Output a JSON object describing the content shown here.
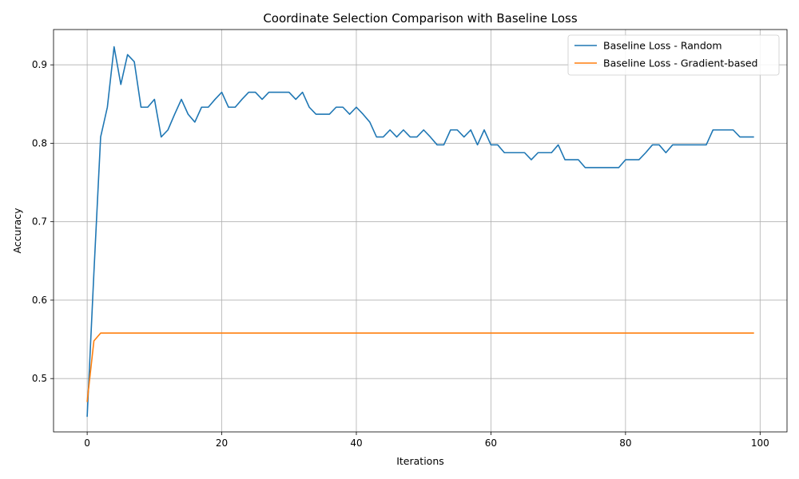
{
  "chart_data": {
    "type": "line",
    "title": "Coordinate Selection Comparison with Baseline Loss",
    "xlabel": "Iterations",
    "ylabel": "Accuracy",
    "xlim": [
      -5,
      104
    ],
    "ylim": [
      0.432,
      0.945
    ],
    "xticks": [
      0,
      20,
      40,
      60,
      80,
      100
    ],
    "yticks": [
      0.5,
      0.6,
      0.7,
      0.8,
      0.9
    ],
    "grid": true,
    "legend_position": "top-right",
    "series": [
      {
        "name": "Baseline Loss - Random",
        "color": "#1f77b4",
        "x": [
          0,
          1,
          2,
          3,
          4,
          5,
          6,
          7,
          8,
          9,
          10,
          11,
          12,
          13,
          14,
          15,
          16,
          17,
          18,
          19,
          20,
          21,
          22,
          23,
          24,
          25,
          26,
          27,
          28,
          29,
          30,
          31,
          32,
          33,
          34,
          35,
          36,
          37,
          38,
          39,
          40,
          41,
          42,
          43,
          44,
          45,
          46,
          47,
          48,
          49,
          50,
          51,
          52,
          53,
          54,
          55,
          56,
          57,
          58,
          59,
          60,
          61,
          62,
          63,
          64,
          65,
          66,
          67,
          68,
          69,
          70,
          71,
          72,
          73,
          74,
          75,
          76,
          77,
          78,
          79,
          80,
          81,
          82,
          83,
          84,
          85,
          86,
          87,
          88,
          89,
          90,
          91,
          92,
          93,
          94,
          95,
          96,
          97,
          98,
          99
        ],
        "values": [
          0.452,
          0.635,
          0.808,
          0.846,
          0.923,
          0.875,
          0.913,
          0.904,
          0.846,
          0.846,
          0.856,
          0.808,
          0.817,
          0.837,
          0.856,
          0.837,
          0.827,
          0.846,
          0.846,
          0.856,
          0.865,
          0.846,
          0.846,
          0.856,
          0.865,
          0.865,
          0.856,
          0.865,
          0.865,
          0.865,
          0.865,
          0.856,
          0.865,
          0.846,
          0.837,
          0.837,
          0.837,
          0.846,
          0.846,
          0.837,
          0.846,
          0.837,
          0.827,
          0.808,
          0.808,
          0.817,
          0.808,
          0.817,
          0.808,
          0.808,
          0.817,
          0.808,
          0.798,
          0.798,
          0.817,
          0.817,
          0.808,
          0.817,
          0.798,
          0.817,
          0.798,
          0.798,
          0.788,
          0.788,
          0.788,
          0.788,
          0.779,
          0.788,
          0.788,
          0.788,
          0.798,
          0.779,
          0.779,
          0.779,
          0.769,
          0.769,
          0.769,
          0.769,
          0.769,
          0.769,
          0.779,
          0.779,
          0.779,
          0.788,
          0.798,
          0.798,
          0.788,
          0.798,
          0.798,
          0.798,
          0.798,
          0.798,
          0.798,
          0.817,
          0.817,
          0.817,
          0.817,
          0.808,
          0.808,
          0.808
        ]
      },
      {
        "name": "Baseline Loss - Gradient-based",
        "color": "#ff7f0e",
        "x": [
          0,
          1,
          2,
          3,
          4,
          5,
          6,
          7,
          8,
          9,
          10,
          11,
          12,
          13,
          14,
          15,
          16,
          17,
          18,
          19,
          20,
          21,
          22,
          23,
          24,
          25,
          26,
          27,
          28,
          29,
          30,
          31,
          32,
          33,
          34,
          35,
          36,
          37,
          38,
          39,
          40,
          41,
          42,
          43,
          44,
          45,
          46,
          47,
          48,
          49,
          50,
          51,
          52,
          53,
          54,
          55,
          56,
          57,
          58,
          59,
          60,
          61,
          62,
          63,
          64,
          65,
          66,
          67,
          68,
          69,
          70,
          71,
          72,
          73,
          74,
          75,
          76,
          77,
          78,
          79,
          80,
          81,
          82,
          83,
          84,
          85,
          86,
          87,
          88,
          89,
          90,
          91,
          92,
          93,
          94,
          95,
          96,
          97,
          98,
          99
        ],
        "values": [
          0.471,
          0.548,
          0.558,
          0.558,
          0.558,
          0.558,
          0.558,
          0.558,
          0.558,
          0.558,
          0.558,
          0.558,
          0.558,
          0.558,
          0.558,
          0.558,
          0.558,
          0.558,
          0.558,
          0.558,
          0.558,
          0.558,
          0.558,
          0.558,
          0.558,
          0.558,
          0.558,
          0.558,
          0.558,
          0.558,
          0.558,
          0.558,
          0.558,
          0.558,
          0.558,
          0.558,
          0.558,
          0.558,
          0.558,
          0.558,
          0.558,
          0.558,
          0.558,
          0.558,
          0.558,
          0.558,
          0.558,
          0.558,
          0.558,
          0.558,
          0.558,
          0.558,
          0.558,
          0.558,
          0.558,
          0.558,
          0.558,
          0.558,
          0.558,
          0.558,
          0.558,
          0.558,
          0.558,
          0.558,
          0.558,
          0.558,
          0.558,
          0.558,
          0.558,
          0.558,
          0.558,
          0.558,
          0.558,
          0.558,
          0.558,
          0.558,
          0.558,
          0.558,
          0.558,
          0.558,
          0.558,
          0.558,
          0.558,
          0.558,
          0.558,
          0.558,
          0.558,
          0.558,
          0.558,
          0.558,
          0.558,
          0.558,
          0.558,
          0.558,
          0.558,
          0.558,
          0.558,
          0.558,
          0.558,
          0.558
        ]
      }
    ]
  }
}
